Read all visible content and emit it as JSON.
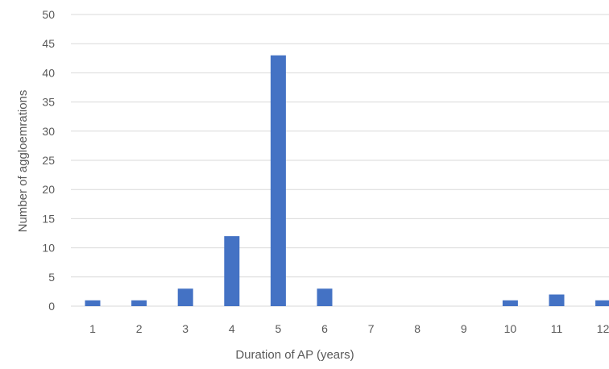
{
  "chart_data": {
    "type": "bar",
    "title": "",
    "xlabel": "Duration of AP (years)",
    "ylabel": "Number of aggloemrations",
    "categories": [
      "1",
      "2",
      "3",
      "4",
      "5",
      "6",
      "7",
      "8",
      "9",
      "10",
      "11",
      "12"
    ],
    "values": [
      1,
      1,
      3,
      12,
      43,
      3,
      0,
      0,
      0,
      1,
      2,
      1
    ],
    "ylim": [
      0,
      50
    ],
    "yticks": [
      "0",
      "5",
      "10",
      "15",
      "20",
      "25",
      "30",
      "35",
      "40",
      "45",
      "50"
    ],
    "grid": true,
    "legend": "none",
    "bar_color": "#4472c4",
    "grid_color": "#d9d9d9",
    "text_color": "#595959"
  }
}
